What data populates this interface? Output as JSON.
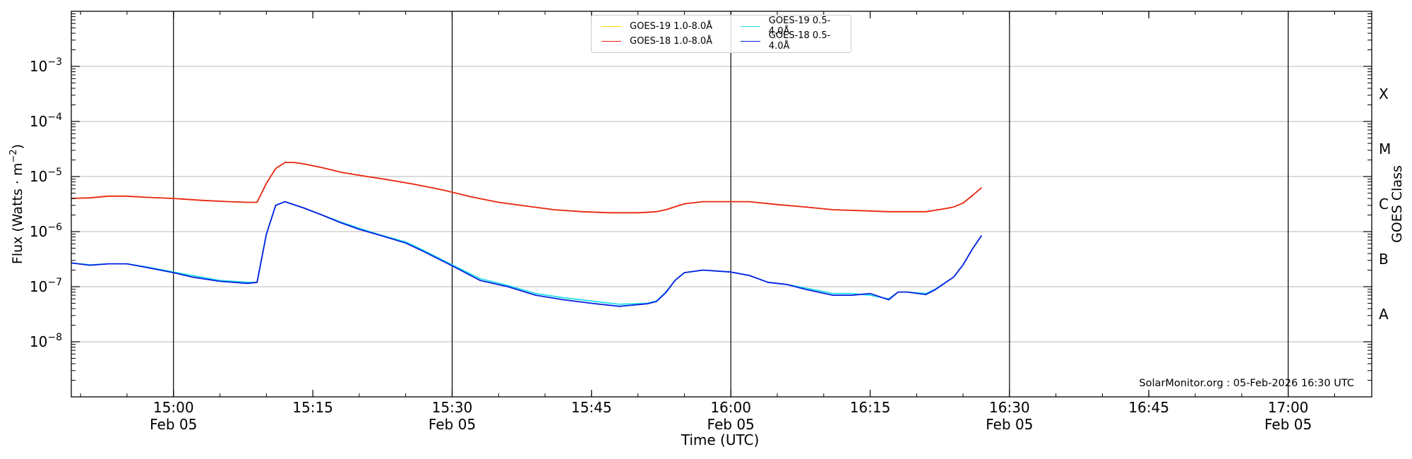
{
  "chart_data": {
    "type": "line",
    "title": "",
    "xlabel": "Time (UTC)",
    "ylabel": "Flux (Watts · m⁻²)",
    "y2label": "GOES Class",
    "yscale": "log",
    "ylim": [
      1e-09,
      0.01
    ],
    "xlim": [
      "14:49",
      "17:09"
    ],
    "grid": "horizontal",
    "legend_position": "top-center",
    "x_ticks": [
      {
        "t": "15:00",
        "label": "15:00",
        "sub": "Feb 05",
        "major": true
      },
      {
        "t": "15:15",
        "label": "15:15",
        "sub": "",
        "major": false
      },
      {
        "t": "15:30",
        "label": "15:30",
        "sub": "Feb 05",
        "major": true
      },
      {
        "t": "15:45",
        "label": "15:45",
        "sub": "",
        "major": false
      },
      {
        "t": "16:00",
        "label": "16:00",
        "sub": "Feb 05",
        "major": true
      },
      {
        "t": "16:15",
        "label": "16:15",
        "sub": "",
        "major": false
      },
      {
        "t": "16:30",
        "label": "16:30",
        "sub": "Feb 05",
        "major": true
      },
      {
        "t": "16:45",
        "label": "16:45",
        "sub": "",
        "major": false
      },
      {
        "t": "17:00",
        "label": "17:00",
        "sub": "Feb 05",
        "major": true
      }
    ],
    "y_ticks": [
      {
        "value": 1e-08,
        "base": "10",
        "exp": "−8"
      },
      {
        "value": 1e-07,
        "base": "10",
        "exp": "−7"
      },
      {
        "value": 1e-06,
        "base": "10",
        "exp": "−6"
      },
      {
        "value": 1e-05,
        "base": "10",
        "exp": "−5"
      },
      {
        "value": 0.0001,
        "base": "10",
        "exp": "−4"
      },
      {
        "value": 0.001,
        "base": "10",
        "exp": "−3"
      }
    ],
    "goes_classes": [
      {
        "label": "A",
        "value": 3.16e-08
      },
      {
        "label": "B",
        "value": 3.16e-07
      },
      {
        "label": "C",
        "value": 3.16e-06
      },
      {
        "label": "M",
        "value": 3.16e-05
      },
      {
        "label": "X",
        "value": 0.000316
      }
    ],
    "series": [
      {
        "name": "GOES-19 1.0-8.0Å",
        "color": "#ffd700",
        "x": [
          "14:49",
          "14:51",
          "14:53",
          "14:55",
          "14:57",
          "15:00",
          "15:03",
          "15:06",
          "15:08",
          "15:09",
          "15:10",
          "15:11",
          "15:12",
          "15:13",
          "15:14",
          "15:16",
          "15:18",
          "15:20",
          "15:23",
          "15:26",
          "15:29",
          "15:32",
          "15:35",
          "15:38",
          "15:41",
          "15:44",
          "15:47",
          "15:50",
          "15:52",
          "15:53",
          "15:55",
          "15:57",
          "16:00",
          "16:02",
          "16:05",
          "16:08",
          "16:11",
          "16:14",
          "16:17",
          "16:19",
          "16:21",
          "16:23",
          "16:24",
          "16:25",
          "16:26",
          "16:27"
        ],
        "y": [
          4e-06,
          4.1e-06,
          4.4e-06,
          4.4e-06,
          4.2e-06,
          4e-06,
          3.7e-06,
          3.5e-06,
          3.4e-06,
          3.4e-06,
          7.5e-06,
          1.4e-05,
          1.8e-05,
          1.8e-05,
          1.7e-05,
          1.45e-05,
          1.2e-05,
          1.05e-05,
          8.8e-06,
          7.2e-06,
          5.7e-06,
          4.3e-06,
          3.4e-06,
          2.9e-06,
          2.5e-06,
          2.3e-06,
          2.2e-06,
          2.2e-06,
          2.3e-06,
          2.5e-06,
          3.2e-06,
          3.5e-06,
          3.5e-06,
          3.5e-06,
          3.1e-06,
          2.8e-06,
          2.5e-06,
          2.4e-06,
          2.3e-06,
          2.3e-06,
          2.3e-06,
          2.6e-06,
          2.8e-06,
          3.3e-06,
          4.5e-06,
          6.3e-06
        ]
      },
      {
        "name": "GOES-18 1.0-8.0Å",
        "color": "#e8261f",
        "x": [
          "14:49",
          "14:51",
          "14:53",
          "14:55",
          "14:57",
          "15:00",
          "15:03",
          "15:06",
          "15:08",
          "15:09",
          "15:10",
          "15:11",
          "15:12",
          "15:13",
          "15:14",
          "15:16",
          "15:18",
          "15:20",
          "15:23",
          "15:26",
          "15:29",
          "15:32",
          "15:35",
          "15:38",
          "15:41",
          "15:44",
          "15:47",
          "15:50",
          "15:52",
          "15:53",
          "15:55",
          "15:57",
          "16:00",
          "16:02",
          "16:05",
          "16:08",
          "16:11",
          "16:14",
          "16:17",
          "16:19",
          "16:21",
          "16:23",
          "16:24",
          "16:25",
          "16:26",
          "16:27"
        ],
        "y": [
          4e-06,
          4.1e-06,
          4.4e-06,
          4.4e-06,
          4.2e-06,
          4e-06,
          3.7e-06,
          3.5e-06,
          3.4e-06,
          3.4e-06,
          7.5e-06,
          1.4e-05,
          1.8e-05,
          1.8e-05,
          1.7e-05,
          1.45e-05,
          1.2e-05,
          1.05e-05,
          8.8e-06,
          7.2e-06,
          5.7e-06,
          4.3e-06,
          3.4e-06,
          2.9e-06,
          2.5e-06,
          2.3e-06,
          2.2e-06,
          2.2e-06,
          2.3e-06,
          2.5e-06,
          3.2e-06,
          3.5e-06,
          3.5e-06,
          3.5e-06,
          3.1e-06,
          2.8e-06,
          2.5e-06,
          2.4e-06,
          2.3e-06,
          2.3e-06,
          2.3e-06,
          2.6e-06,
          2.8e-06,
          3.3e-06,
          4.5e-06,
          6.3e-06
        ]
      },
      {
        "name": "GOES-19 0.5-4.0Å",
        "color": "#22e0e8",
        "x": [
          "14:49",
          "14:51",
          "14:53",
          "14:55",
          "14:57",
          "15:00",
          "15:02",
          "15:05",
          "15:08",
          "15:09",
          "15:10",
          "15:11",
          "15:12",
          "15:14",
          "15:16",
          "15:18",
          "15:20",
          "15:22",
          "15:25",
          "15:27",
          "15:30",
          "15:33",
          "15:36",
          "15:39",
          "15:42",
          "15:45",
          "15:48",
          "15:51",
          "15:52",
          "15:53",
          "15:54",
          "15:55",
          "15:57",
          "16:00",
          "16:02",
          "16:04",
          "16:06",
          "16:08",
          "16:11",
          "16:13",
          "16:15",
          "16:17",
          "16:18",
          "16:19",
          "16:21",
          "16:22",
          "16:24",
          "16:25",
          "16:26",
          "16:27"
        ],
        "y": [
          2.7e-07,
          2.5e-07,
          2.6e-07,
          2.6e-07,
          2.3e-07,
          1.85e-07,
          1.6e-07,
          1.3e-07,
          1.2e-07,
          1.2e-07,
          9e-07,
          3e-06,
          3.5e-06,
          2.7e-06,
          2e-06,
          1.5e-06,
          1.15e-06,
          9e-07,
          6.5e-07,
          4.5e-07,
          2.5e-07,
          1.4e-07,
          1.05e-07,
          7.5e-08,
          6.3e-08,
          5.5e-08,
          4.8e-08,
          5e-08,
          5.5e-08,
          8e-08,
          1.3e-07,
          1.8e-07,
          2e-07,
          1.85e-07,
          1.6e-07,
          1.2e-07,
          1.1e-07,
          9.5e-08,
          7.5e-08,
          7.5e-08,
          7e-08,
          6e-08,
          8e-08,
          8e-08,
          7.5e-08,
          9e-08,
          1.5e-07,
          2.5e-07,
          4.8e-07,
          8.5e-07
        ]
      },
      {
        "name": "GOES-18 0.5-4.0Å",
        "color": "#0a1ee0",
        "x": [
          "14:49",
          "14:51",
          "14:53",
          "14:55",
          "14:57",
          "15:00",
          "15:02",
          "15:05",
          "15:08",
          "15:09",
          "15:10",
          "15:11",
          "15:12",
          "15:14",
          "15:16",
          "15:18",
          "15:20",
          "15:22",
          "15:25",
          "15:27",
          "15:30",
          "15:33",
          "15:36",
          "15:39",
          "15:42",
          "15:45",
          "15:48",
          "15:51",
          "15:52",
          "15:53",
          "15:54",
          "15:55",
          "15:57",
          "16:00",
          "16:02",
          "16:04",
          "16:06",
          "16:08",
          "16:11",
          "16:13",
          "16:15",
          "16:17",
          "16:18",
          "16:19",
          "16:21",
          "16:22",
          "16:24",
          "16:25",
          "16:26",
          "16:27"
        ],
        "y": [
          2.7e-07,
          2.45e-07,
          2.6e-07,
          2.6e-07,
          2.25e-07,
          1.8e-07,
          1.5e-07,
          1.25e-07,
          1.15e-07,
          1.2e-07,
          9e-07,
          3e-06,
          3.5e-06,
          2.7e-06,
          2e-06,
          1.45e-06,
          1.1e-06,
          8.8e-07,
          6.2e-07,
          4.3e-07,
          2.4e-07,
          1.3e-07,
          1e-07,
          7e-08,
          5.8e-08,
          5e-08,
          4.4e-08,
          4.9e-08,
          5.4e-08,
          7.8e-08,
          1.3e-07,
          1.8e-07,
          2e-07,
          1.85e-07,
          1.6e-07,
          1.2e-07,
          1.1e-07,
          9e-08,
          7e-08,
          7e-08,
          7.5e-08,
          5.8e-08,
          8e-08,
          8e-08,
          7.2e-08,
          8.8e-08,
          1.5e-07,
          2.5e-07,
          4.8e-07,
          8.5e-07
        ]
      }
    ],
    "legend": [
      {
        "name": "GOES-19 1.0-8.0Å",
        "color": "#ffd700"
      },
      {
        "name": "GOES-19 0.5-4.0Å",
        "color": "#22e0e8"
      },
      {
        "name": "GOES-18 1.0-8.0Å",
        "color": "#e8261f"
      },
      {
        "name": "GOES-18 0.5-4.0Å",
        "color": "#0a1ee0"
      }
    ],
    "annotation": "SolarMonitor.org : 05-Feb-2026 16:30 UTC"
  }
}
